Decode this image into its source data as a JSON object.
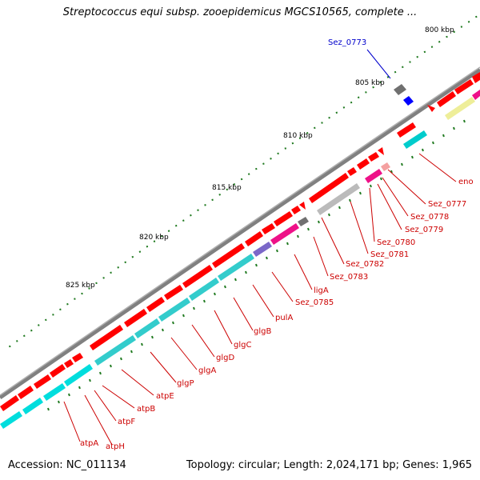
{
  "title": "Streptococcus equi subsp. zooepidemicus MGCS10565, complete ...",
  "accession": "Accession: NC_011134",
  "summary": "Topology: circular; Length: 2,024,171 bp; Genes: 1,965",
  "colors": {
    "backbone": "#808080",
    "gene_red": "#ff0000",
    "gene_cyan": "#33cccc",
    "label_red": "#cc0000",
    "label_blue": "#0000cc",
    "tick_green": "#207a20"
  },
  "scale_ticks": [
    "800 kbp",
    "805 kbp",
    "810 kbp",
    "815 kbp",
    "820 kbp",
    "825 kbp"
  ],
  "highlighted_label": "Sez_0773",
  "gene_labels": [
    "eno",
    "Sez_0777",
    "Sez_0778",
    "Sez_0779",
    "Sez_0780",
    "Sez_0781",
    "Sez_0782",
    "Sez_0783",
    "ligA",
    "Sez_0785",
    "pulA",
    "glgB",
    "glgC",
    "glgD",
    "glgA",
    "glgP",
    "atpE",
    "atpB",
    "atpF",
    "atpA",
    "atpH"
  ]
}
